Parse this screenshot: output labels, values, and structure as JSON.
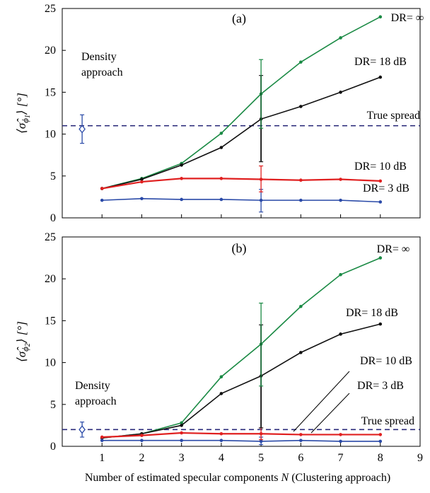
{
  "chart_data": [
    {
      "type": "line",
      "panel_label": "(a)",
      "ylabel": "⟨σ̂ϕ1⟩ [°]",
      "xlim": [
        0,
        9
      ],
      "ylim": [
        0,
        25
      ],
      "yticks": [
        0,
        5,
        10,
        15,
        20,
        25
      ],
      "xticks": [
        1,
        2,
        3,
        4,
        5,
        6,
        7,
        8
      ],
      "grid": false,
      "x": [
        1,
        2,
        3,
        4,
        5,
        6,
        7,
        8
      ],
      "series": [
        {
          "name": "DR= ∞",
          "color": "#1a8a44",
          "values": [
            3.5,
            4.7,
            6.5,
            10.1,
            14.8,
            18.6,
            21.5,
            24.0
          ],
          "errorbar": {
            "x": 5,
            "low": 10.7,
            "high": 18.9
          }
        },
        {
          "name": "DR= 18 dB",
          "color": "#111111",
          "values": [
            3.5,
            4.6,
            6.3,
            8.4,
            11.8,
            13.3,
            15.0,
            16.8
          ],
          "errorbar": {
            "x": 5,
            "low": 6.7,
            "high": 17.0
          }
        },
        {
          "name": "DR= 10 dB",
          "color": "#e02020",
          "values": [
            3.5,
            4.3,
            4.7,
            4.7,
            4.6,
            4.5,
            4.6,
            4.4
          ],
          "errorbar": {
            "x": 5,
            "low": 3.1,
            "high": 6.2
          }
        },
        {
          "name": "DR= 3 dB",
          "color": "#2a4aa8",
          "values": [
            2.1,
            2.3,
            2.2,
            2.2,
            2.1,
            2.1,
            2.1,
            1.9
          ],
          "errorbar": {
            "x": 5,
            "low": 0.7,
            "high": 3.4
          }
        }
      ],
      "reference_line": {
        "label": "True spread",
        "y": 11.0,
        "color": "#2a2a7a",
        "dashed": true
      },
      "density_point": {
        "label": "Density approach",
        "x": 0.5,
        "y": 10.6,
        "low": 8.9,
        "high": 12.3,
        "color": "#2a4aa8"
      }
    },
    {
      "type": "line",
      "panel_label": "(b)",
      "ylabel": "⟨σ̂ϕ2⟩ [°]",
      "xlabel": "Number of estimated specular components N (Clustering approach)",
      "xlim": [
        0,
        9
      ],
      "ylim": [
        0,
        25
      ],
      "yticks": [
        0,
        5,
        10,
        15,
        20,
        25
      ],
      "xticks": [
        1,
        2,
        3,
        4,
        5,
        6,
        7,
        8,
        9
      ],
      "grid": false,
      "x": [
        1,
        2,
        3,
        4,
        5,
        6,
        7,
        8
      ],
      "series": [
        {
          "name": "DR= ∞",
          "color": "#1a8a44",
          "values": [
            1.0,
            1.5,
            2.8,
            8.3,
            12.2,
            16.7,
            20.5,
            22.5
          ],
          "errorbar": {
            "x": 5,
            "low": 7.2,
            "high": 17.1
          }
        },
        {
          "name": "DR= 18 dB",
          "color": "#111111",
          "values": [
            1.0,
            1.5,
            2.5,
            6.3,
            8.4,
            11.2,
            13.4,
            14.6
          ],
          "errorbar": {
            "x": 5,
            "low": 2.2,
            "high": 14.5
          }
        },
        {
          "name": "DR= 10 dB",
          "color": "#e02020",
          "values": [
            1.1,
            1.3,
            1.6,
            1.5,
            1.5,
            1.4,
            1.4,
            1.4
          ],
          "errorbar": {
            "x": 5,
            "low": 0.8,
            "high": 2.2
          }
        },
        {
          "name": "DR= 3 dB",
          "color": "#2a4aa8",
          "values": [
            0.7,
            0.7,
            0.7,
            0.7,
            0.6,
            0.7,
            0.6,
            0.6
          ],
          "errorbar": {
            "x": 5,
            "low": 0.2,
            "high": 1.1
          }
        }
      ],
      "reference_line": {
        "label": "True spread",
        "y": 2.0,
        "color": "#2a2a7a",
        "dashed": true
      },
      "density_point": {
        "label": "Density approach",
        "x": 0.5,
        "y": 2.0,
        "low": 1.1,
        "high": 2.9,
        "color": "#2a4aa8"
      }
    }
  ],
  "density_label_lines": [
    "Density",
    "approach"
  ],
  "xlabel_parts": [
    "Number of estimated specular components ",
    "N",
    " (Clustering approach)"
  ],
  "ylabel_a": {
    "prefix": "⟨σ̂",
    "sub": "ϕ",
    "subsub": "1",
    "suffix": "⟩ [°]"
  },
  "ylabel_b": {
    "prefix": "⟨σ̂",
    "sub": "ϕ",
    "subsub": "2",
    "suffix": "⟩ [°]"
  }
}
